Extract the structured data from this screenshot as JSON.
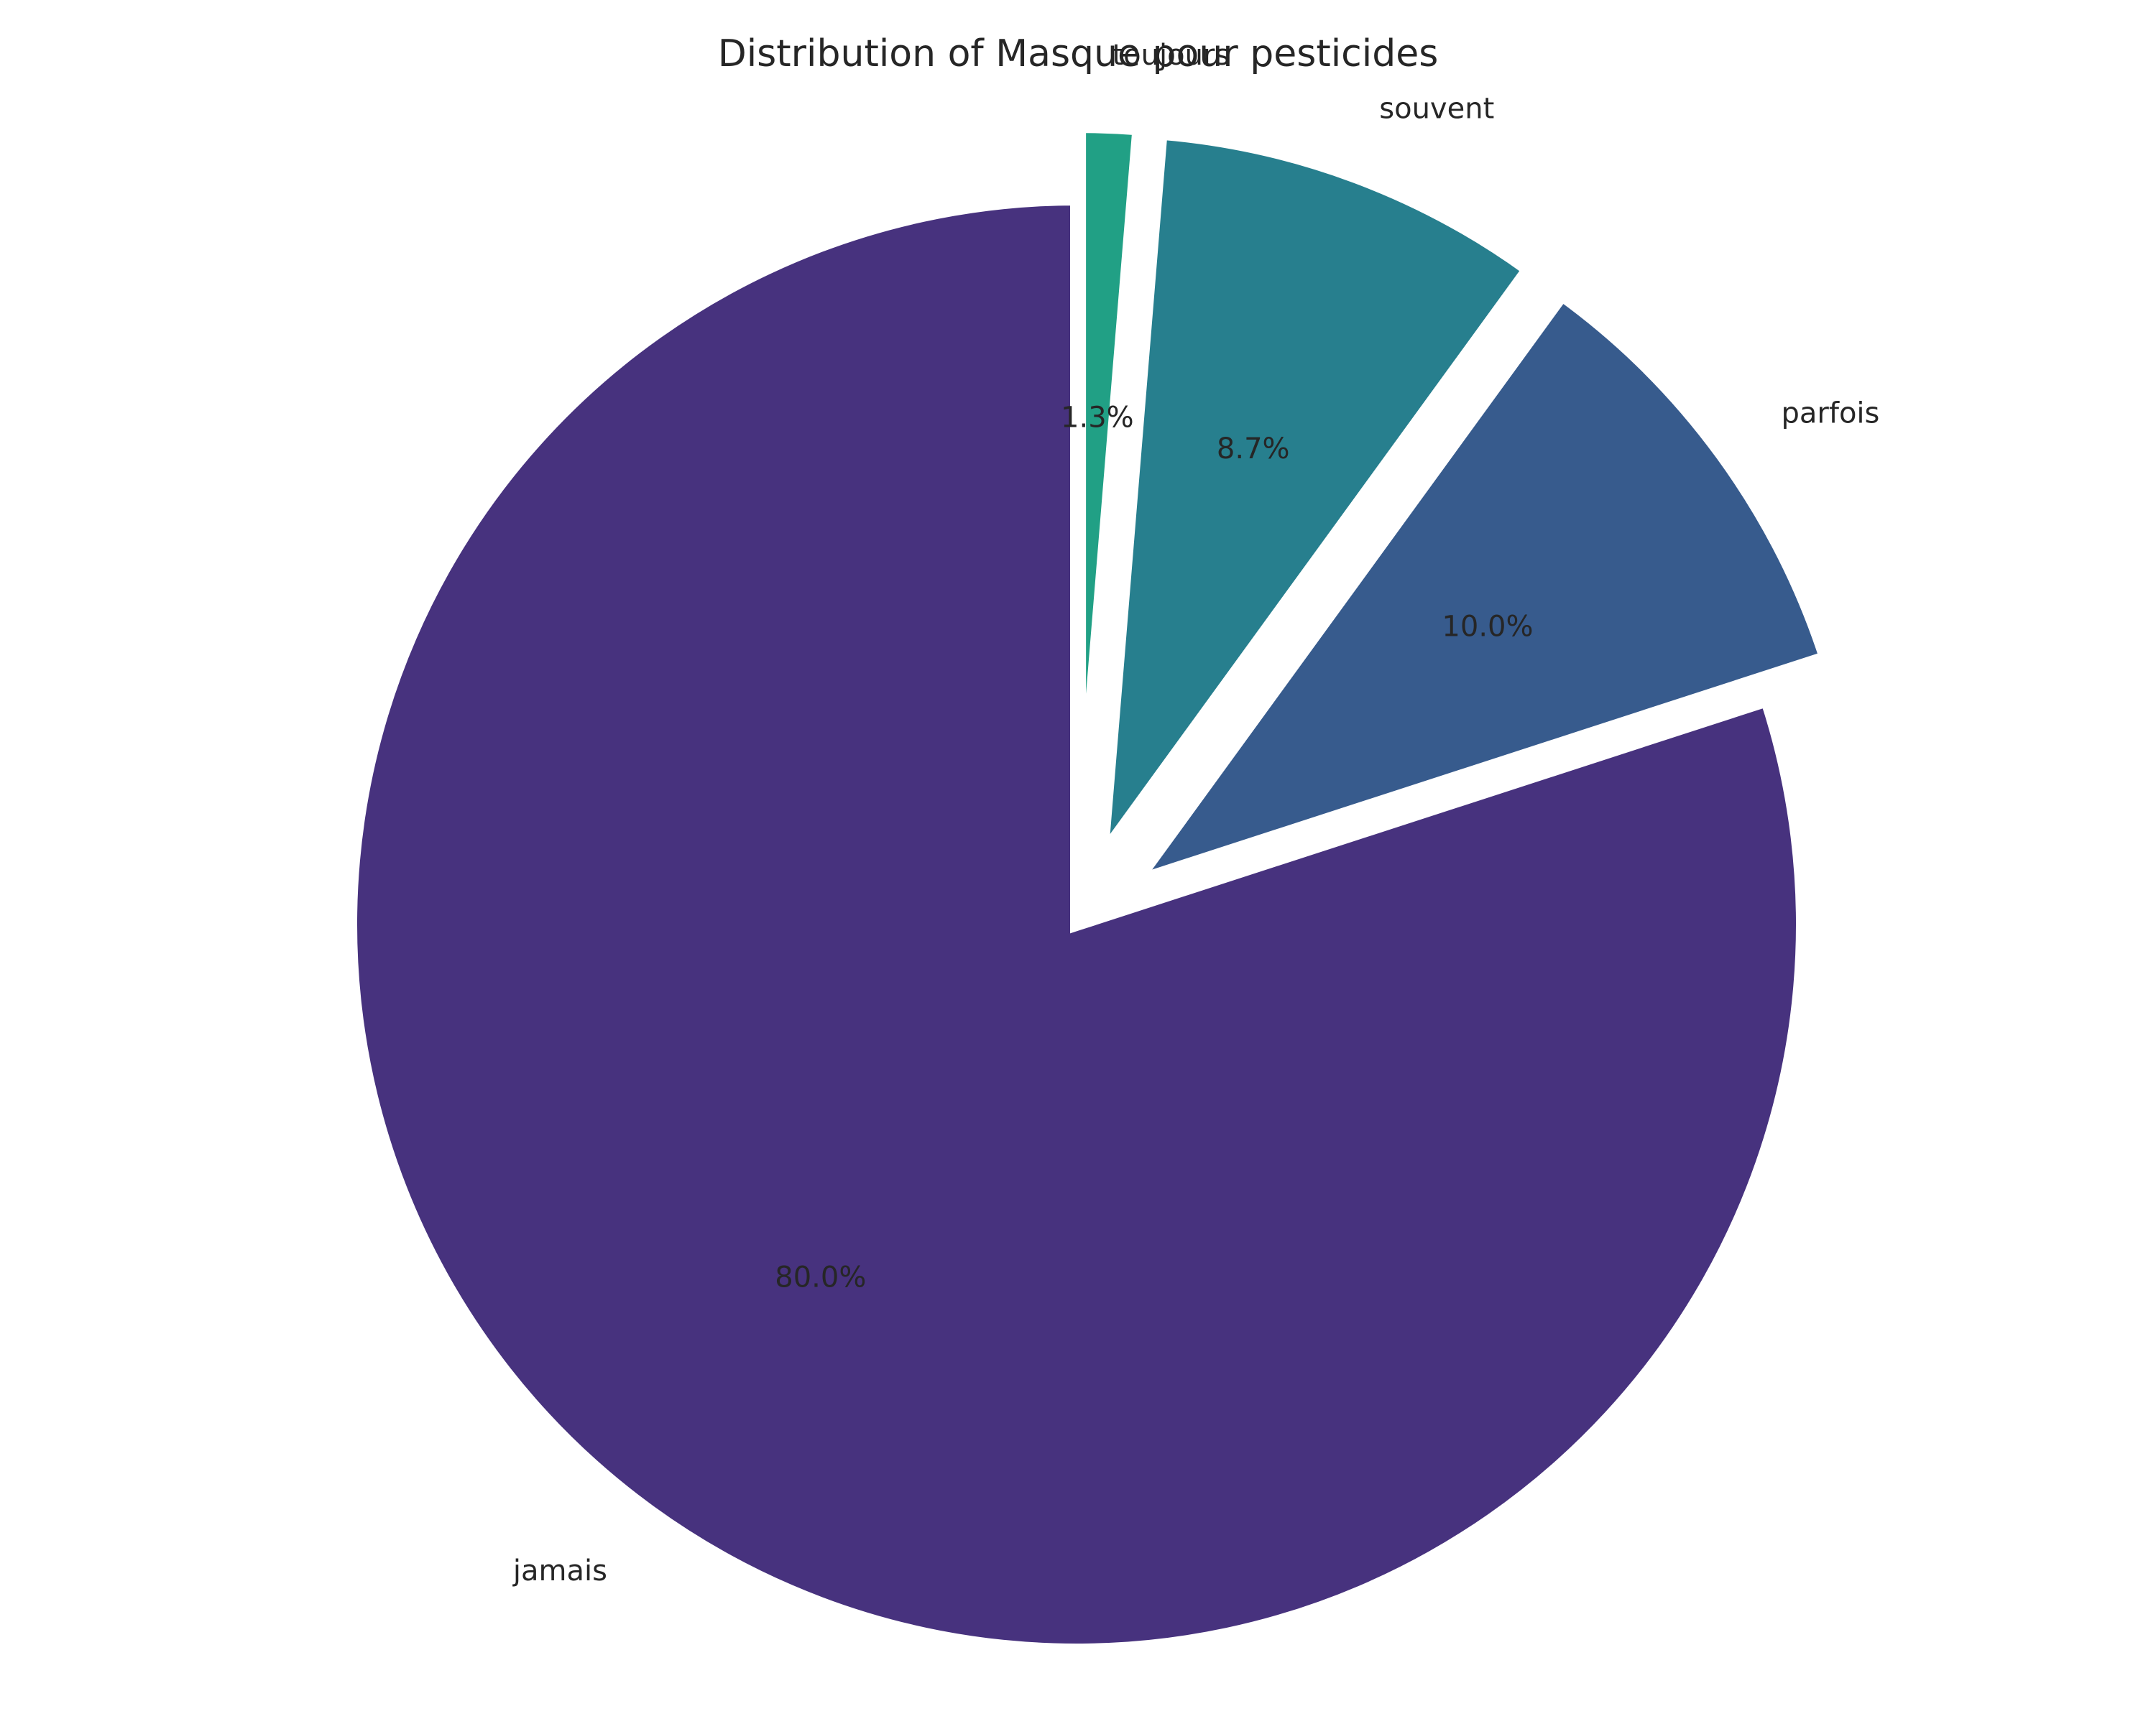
{
  "chart_data": {
    "type": "pie",
    "title": "Distribution of Masque pour pesticides",
    "start_angle_deg": 90,
    "direction": "clockwise",
    "slices": [
      {
        "label": "toujours",
        "value": 1.3,
        "pct_label": "1.3%",
        "color": "#21a085",
        "exploded": true
      },
      {
        "label": "souvent",
        "value": 8.7,
        "pct_label": "8.7%",
        "color": "#277f8e",
        "exploded": true
      },
      {
        "label": "parfois",
        "value": 10.0,
        "pct_label": "10.0%",
        "color": "#375b8d",
        "exploded": true
      },
      {
        "label": "jamais",
        "value": 80.0,
        "pct_label": "80.0%",
        "color": "#47327e",
        "exploded": false
      }
    ],
    "edge_color": "#ffffff"
  }
}
